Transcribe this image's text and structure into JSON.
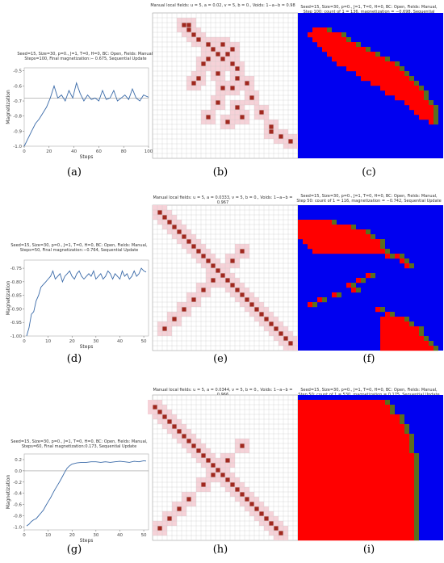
{
  "panels": [
    {
      "id": "a",
      "caption": "(a)",
      "title": [
        "Seed=15, Size=30, p=0., J=1, T=0, H=0, BC: Open, Fields: Manual,",
        "Steps=100, Final magnetization:− 0.675, Sequential Update"
      ],
      "chart_data": {
        "type": "line",
        "xlabel": "Steps",
        "ylabel": "Magnetization",
        "xlim": [
          0,
          100
        ],
        "ylim": [
          -1.0,
          -0.48
        ],
        "xticks": [
          0,
          20,
          40,
          60,
          80,
          100
        ],
        "yticks": [
          -1.0,
          -0.9,
          -0.8,
          -0.7,
          -0.6,
          -0.5
        ],
        "reference_line": -0.68,
        "series": [
          {
            "x": [
              0,
              3,
              6,
              9,
              12,
              15,
              18,
              21,
              24,
              27,
              30,
              33,
              36,
              39,
              42,
              45,
              48,
              51,
              54,
              57,
              60,
              63,
              66,
              69,
              72,
              75,
              78,
              81,
              84,
              87,
              90,
              93,
              96,
              100
            ],
            "values": [
              -1.0,
              -0.95,
              -0.9,
              -0.85,
              -0.82,
              -0.78,
              -0.74,
              -0.68,
              -0.6,
              -0.68,
              -0.66,
              -0.7,
              -0.63,
              -0.68,
              -0.58,
              -0.65,
              -0.7,
              -0.66,
              -0.69,
              -0.68,
              -0.7,
              -0.63,
              -0.69,
              -0.68,
              -0.63,
              -0.7,
              -0.68,
              -0.66,
              -0.69,
              -0.62,
              -0.68,
              -0.7,
              -0.66,
              -0.675
            ]
          }
        ]
      }
    },
    {
      "id": "b",
      "caption": "(b)",
      "title": "Manual local fields: u = 5, a = 0.02, v = 5, b = 0., Voids: 1−a−b = 0.98"
    },
    {
      "id": "c",
      "caption": "(c)",
      "title": [
        "Seed=15, Size=30, p=0., J=1, T=0, H=0, BC: Open, Fields: Manual,",
        "Step 100: count of 1 = 136, magnetization = −0.698, Sequential Update"
      ]
    },
    {
      "id": "d",
      "caption": "(d)",
      "title": [
        "Seed=15, Size=30, p=0., J=1, T=0, H=0, BC: Open, Fields: Manual,",
        "Steps=50, Final magnetization:−0.764, Sequential Update"
      ],
      "chart_data": {
        "type": "line",
        "xlabel": "Steps",
        "ylabel": "Magnetization",
        "xlim": [
          0,
          52
        ],
        "ylim": [
          -1.0,
          -0.72
        ],
        "xticks": [
          0,
          10,
          20,
          30,
          40,
          50
        ],
        "yticks": [
          -1.0,
          -0.95,
          -0.9,
          -0.85,
          -0.8,
          -0.75
        ],
        "series": [
          {
            "x": [
              1,
              2,
              3,
              4,
              5,
              6,
              7,
              8,
              9,
              10,
              11,
              12,
              13,
              14,
              15,
              16,
              17,
              18,
              19,
              20,
              21,
              22,
              23,
              24,
              25,
              26,
              27,
              28,
              29,
              30,
              31,
              32,
              33,
              34,
              35,
              36,
              37,
              38,
              39,
              40,
              41,
              42,
              43,
              44,
              45,
              46,
              47,
              48,
              49,
              50,
              51
            ],
            "values": [
              -1.0,
              -0.97,
              -0.92,
              -0.91,
              -0.87,
              -0.85,
              -0.82,
              -0.81,
              -0.8,
              -0.79,
              -0.78,
              -0.76,
              -0.79,
              -0.78,
              -0.77,
              -0.8,
              -0.78,
              -0.77,
              -0.76,
              -0.78,
              -0.79,
              -0.77,
              -0.76,
              -0.78,
              -0.79,
              -0.78,
              -0.77,
              -0.78,
              -0.76,
              -0.79,
              -0.78,
              -0.77,
              -0.79,
              -0.78,
              -0.76,
              -0.77,
              -0.79,
              -0.77,
              -0.78,
              -0.79,
              -0.76,
              -0.78,
              -0.77,
              -0.79,
              -0.78,
              -0.76,
              -0.78,
              -0.77,
              -0.75,
              -0.76,
              -0.764
            ]
          }
        ]
      }
    },
    {
      "id": "e",
      "caption": "(e)",
      "title": "Manual local fields: u = 5, a = 0.0333, v = 5, b = 0., Voids: 1−a−b = 0.967"
    },
    {
      "id": "f",
      "caption": "(f)",
      "title": [
        "Seed=15, Size=30, p=0., J=1, T=0, H=0, BC: Open, Fields: Manual,",
        "Step 50: count of 1 = 116, magnetization = −0.742, Sequential Update"
      ]
    },
    {
      "id": "g",
      "caption": "(g)",
      "title": [
        "Seed=15, Size=30, p=0., J=1, T=0, H=0, BC: Open, Fields: Manual,",
        "Steps=60, Final magnetization:0.173, Sequential Update"
      ],
      "chart_data": {
        "type": "line",
        "xlabel": "Steps",
        "ylabel": "Magnetization",
        "xlim": [
          0,
          52
        ],
        "ylim": [
          -1.05,
          0.3
        ],
        "xticks": [
          0,
          10,
          20,
          30,
          40,
          50
        ],
        "yticks": [
          -1.0,
          -0.8,
          -0.6,
          -0.4,
          -0.2,
          0.0,
          0.2
        ],
        "reference_line": 0.0,
        "series": [
          {
            "x": [
              1,
              2,
              3,
              4,
              5,
              6,
              7,
              8,
              9,
              10,
              11,
              12,
              13,
              14,
              15,
              16,
              17,
              18,
              19,
              20,
              22,
              24,
              26,
              28,
              30,
              32,
              34,
              36,
              38,
              40,
              42,
              44,
              46,
              48,
              50,
              51
            ],
            "values": [
              -0.98,
              -0.95,
              -0.9,
              -0.87,
              -0.85,
              -0.8,
              -0.75,
              -0.7,
              -0.62,
              -0.55,
              -0.48,
              -0.4,
              -0.32,
              -0.25,
              -0.18,
              -0.1,
              -0.02,
              0.05,
              0.09,
              0.12,
              0.14,
              0.15,
              0.15,
              0.16,
              0.16,
              0.15,
              0.16,
              0.15,
              0.16,
              0.17,
              0.16,
              0.15,
              0.17,
              0.16,
              0.18,
              0.173
            ]
          }
        ]
      }
    },
    {
      "id": "h",
      "caption": "(h)",
      "title": "Manual local fields: u = 5, a = 0.0344, v = 5, b = 0., Voids: 1−a−b = 0.966"
    },
    {
      "id": "i",
      "caption": "(i)",
      "title": [
        "Seed=15, Size=30, p=0., J=1, T=0, H=0, BC: Open, Fields: Manual,",
        "Step 50: count of 1 = 530, magnetization = 0.175, Sequential Update"
      ]
    }
  ],
  "colors": {
    "plot_line": "#3a6aa8",
    "field_cell": "#a0281e",
    "halo": "#f6d2d8",
    "spin_up": "#ff0000",
    "spin_down": "#0000f0",
    "boundary": "#5c6e1e",
    "grid": "#c8c8c8"
  },
  "fields": {
    "b": [
      [
        6,
        2
      ],
      [
        7,
        2
      ],
      [
        7,
        3
      ],
      [
        8,
        4
      ],
      [
        9,
        5
      ],
      [
        11,
        6
      ],
      [
        14,
        6
      ],
      [
        12,
        7
      ],
      [
        16,
        7
      ],
      [
        13,
        8
      ],
      [
        15,
        8
      ],
      [
        11,
        9
      ],
      [
        14,
        9
      ],
      [
        10,
        10
      ],
      [
        16,
        10
      ],
      [
        17,
        11
      ],
      [
        13,
        12
      ],
      [
        9,
        13
      ],
      [
        17,
        13
      ],
      [
        8,
        14
      ],
      [
        19,
        14
      ],
      [
        14,
        15
      ],
      [
        16,
        15
      ],
      [
        20,
        17
      ],
      [
        13,
        18
      ],
      [
        17,
        19
      ],
      [
        22,
        20
      ],
      [
        11,
        21
      ],
      [
        18,
        21
      ],
      [
        15,
        22
      ],
      [
        24,
        23
      ],
      [
        24,
        24
      ],
      [
        26,
        25
      ],
      [
        28,
        26
      ]
    ],
    "e": [
      [
        1,
        1
      ],
      [
        2,
        2
      ],
      [
        3,
        3
      ],
      [
        4,
        4
      ],
      [
        5,
        5
      ],
      [
        6,
        6
      ],
      [
        7,
        7
      ],
      [
        8,
        8
      ],
      [
        9,
        9
      ],
      [
        10,
        10
      ],
      [
        11,
        11
      ],
      [
        12,
        12
      ],
      [
        13,
        13
      ],
      [
        14,
        14
      ],
      [
        15,
        15
      ],
      [
        16,
        16
      ],
      [
        17,
        17
      ],
      [
        18,
        18
      ],
      [
        19,
        19
      ],
      [
        20,
        20
      ],
      [
        21,
        21
      ],
      [
        22,
        22
      ],
      [
        23,
        23
      ],
      [
        24,
        24
      ],
      [
        25,
        25
      ],
      [
        26,
        26
      ],
      [
        27,
        27
      ],
      [
        28,
        28
      ],
      [
        18,
        9
      ],
      [
        16,
        11
      ],
      [
        12,
        15
      ],
      [
        10,
        17
      ],
      [
        8,
        19
      ],
      [
        6,
        21
      ],
      [
        4,
        23
      ],
      [
        2,
        25
      ]
    ],
    "h": [
      [
        0,
        2
      ],
      [
        1,
        3
      ],
      [
        2,
        4
      ],
      [
        3,
        5
      ],
      [
        4,
        6
      ],
      [
        5,
        7
      ],
      [
        6,
        8
      ],
      [
        7,
        9
      ],
      [
        8,
        10
      ],
      [
        9,
        11
      ],
      [
        10,
        12
      ],
      [
        11,
        13
      ],
      [
        12,
        14
      ],
      [
        13,
        15
      ],
      [
        14,
        16
      ],
      [
        15,
        17
      ],
      [
        16,
        18
      ],
      [
        17,
        19
      ],
      [
        18,
        20
      ],
      [
        19,
        21
      ],
      [
        20,
        22
      ],
      [
        21,
        23
      ],
      [
        22,
        24
      ],
      [
        23,
        25
      ],
      [
        24,
        26
      ],
      [
        25,
        27
      ],
      [
        26,
        28
      ],
      [
        18,
        10
      ],
      [
        12,
        16
      ],
      [
        10,
        18
      ],
      [
        7,
        21
      ],
      [
        5,
        23
      ],
      [
        3,
        25
      ],
      [
        1,
        27
      ],
      [
        15,
        13
      ]
    ]
  },
  "spin_maps": {
    "c": [
      [
        0,
        3,
        3,
        6
      ],
      [
        0,
        4,
        2,
        9
      ],
      [
        1,
        5,
        3,
        10
      ],
      [
        2,
        6,
        4,
        12
      ],
      [
        2,
        7,
        5,
        14
      ],
      [
        3,
        8,
        6,
        16
      ],
      [
        4,
        9,
        7,
        18
      ],
      [
        5,
        10,
        8,
        20
      ],
      [
        6,
        11,
        10,
        21
      ],
      [
        7,
        12,
        12,
        22
      ],
      [
        8,
        13,
        13,
        23
      ],
      [
        9,
        14,
        15,
        24
      ],
      [
        10,
        15,
        17,
        25
      ],
      [
        11,
        16,
        18,
        26
      ],
      [
        12,
        17,
        20,
        26
      ],
      [
        13,
        18,
        22,
        27
      ],
      [
        14,
        19,
        23,
        28
      ],
      [
        15,
        20,
        24,
        28
      ],
      [
        16,
        21,
        25,
        28
      ],
      [
        17,
        22,
        27,
        28
      ]
    ],
    "f": [
      [
        0,
        3,
        0,
        7
      ],
      [
        0,
        4,
        0,
        11
      ],
      [
        0,
        5,
        0,
        14
      ],
      [
        1,
        6,
        0,
        15
      ],
      [
        1,
        7,
        1,
        17
      ],
      [
        1,
        8,
        2,
        17
      ],
      [
        1,
        9,
        3,
        18
      ],
      [
        8,
        10,
        18,
        19
      ],
      [
        11,
        10,
        20,
        21
      ],
      [
        12,
        11,
        21,
        22
      ],
      [
        14,
        12,
        22,
        23
      ],
      [
        9,
        14,
        14,
        15
      ],
      [
        10,
        15,
        12,
        13
      ],
      [
        11,
        16,
        10,
        11
      ],
      [
        13,
        17,
        11,
        12
      ],
      [
        15,
        18,
        7,
        8
      ],
      [
        17,
        19,
        4,
        5
      ],
      [
        18,
        20,
        2,
        3
      ],
      [
        20,
        21,
        16,
        17
      ],
      [
        23,
        22,
        18,
        19
      ],
      [
        22,
        23,
        17,
        22
      ],
      [
        23,
        24,
        17,
        23
      ],
      [
        24,
        25,
        17,
        25
      ],
      [
        25,
        26,
        17,
        25
      ],
      [
        26,
        27,
        17,
        26
      ],
      [
        27,
        28,
        17,
        27
      ],
      [
        28,
        29,
        17,
        28
      ]
    ],
    "i": [
      [
        0,
        0,
        0,
        0
      ],
      [
        0,
        1,
        0,
        18
      ],
      [
        0,
        2,
        0,
        19
      ],
      [
        0,
        3,
        0,
        19
      ],
      [
        0,
        4,
        0,
        21
      ],
      [
        0,
        5,
        0,
        21
      ],
      [
        0,
        6,
        0,
        22
      ],
      [
        0,
        7,
        0,
        22
      ],
      [
        0,
        8,
        0,
        23
      ],
      [
        0,
        9,
        0,
        23
      ],
      [
        0,
        10,
        0,
        23
      ],
      [
        0,
        11,
        0,
        23
      ],
      [
        0,
        12,
        0,
        24
      ],
      [
        0,
        13,
        0,
        24
      ],
      [
        0,
        14,
        0,
        24
      ],
      [
        0,
        15,
        0,
        24
      ],
      [
        0,
        16,
        0,
        24
      ],
      [
        0,
        17,
        0,
        24
      ],
      [
        0,
        18,
        0,
        24
      ],
      [
        0,
        19,
        0,
        24
      ],
      [
        0,
        20,
        0,
        24
      ],
      [
        0,
        21,
        0,
        24
      ],
      [
        0,
        22,
        0,
        24
      ],
      [
        0,
        23,
        0,
        24
      ],
      [
        0,
        24,
        0,
        24
      ],
      [
        0,
        25,
        0,
        24
      ],
      [
        0,
        26,
        0,
        24
      ],
      [
        0,
        27,
        0,
        24
      ],
      [
        0,
        28,
        0,
        24
      ],
      [
        0,
        29,
        0,
        24
      ]
    ]
  }
}
